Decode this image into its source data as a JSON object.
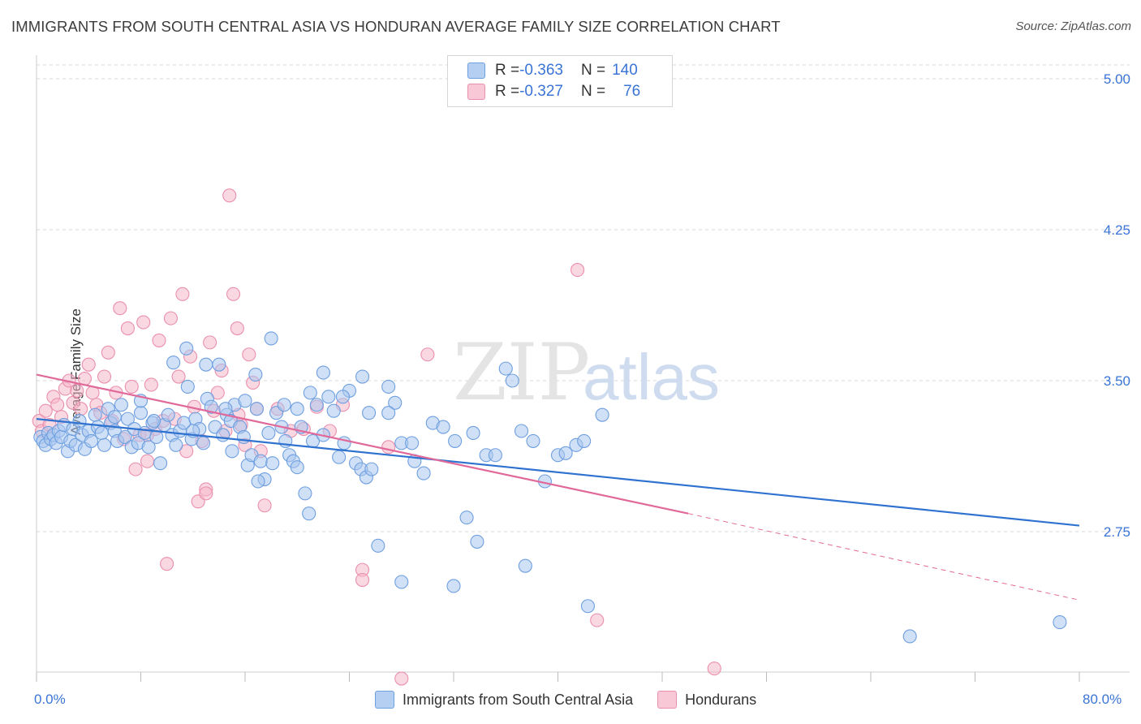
{
  "title": "IMMIGRANTS FROM SOUTH CENTRAL ASIA VS HONDURAN AVERAGE FAMILY SIZE CORRELATION CHART",
  "source": "Source: ZipAtlas.com",
  "watermark": {
    "part1": "ZIP",
    "part2": "atlas"
  },
  "legend": {
    "rows": [
      {
        "r_label": "R = ",
        "r_value": "-0.363",
        "n_label": "N = ",
        "n_value": "140"
      },
      {
        "r_label": "R = ",
        "r_value": "-0.327",
        "n_label": "N = ",
        "n_value": "76"
      }
    ]
  },
  "bottom_legend": [
    "Immigrants from South Central Asia",
    "Hondurans"
  ],
  "colors": {
    "blue_fill": "#a9c6ef",
    "blue_stroke": "#6e9fe0",
    "blue_line": "#2f72d0",
    "pink_fill": "#f5b8cb",
    "pink_stroke": "#ea8fae",
    "pink_line": "#e0699a",
    "tick_text": "#3a74d6",
    "grid": "#d8d8d8"
  },
  "chart_data": {
    "type": "scatter",
    "title": "IMMIGRANTS FROM SOUTH CENTRAL ASIA VS HONDURAN AVERAGE FAMILY SIZE CORRELATION CHART",
    "xlabel": "",
    "ylabel": "Average Family Size",
    "xlim": [
      0,
      80
    ],
    "ylim": [
      2.0,
      5.1
    ],
    "x_tick_labels": [
      "0.0%",
      "80.0%"
    ],
    "y_ticks": [
      2.75,
      3.5,
      4.25,
      5.0
    ],
    "y_tick_labels": [
      "2.75",
      "3.50",
      "4.25",
      "5.00"
    ],
    "grid": true,
    "series": [
      {
        "name": "Immigrants from South Central Asia",
        "color": "#a9c6ef",
        "trend": {
          "x0": 0,
          "y0": 3.31,
          "x1": 80,
          "y1": 2.78
        },
        "points": [
          [
            0.3,
            3.22
          ],
          [
            0.5,
            3.2
          ],
          [
            0.7,
            3.18
          ],
          [
            0.9,
            3.24
          ],
          [
            1.1,
            3.21
          ],
          [
            1.3,
            3.23
          ],
          [
            1.5,
            3.19
          ],
          [
            1.7,
            3.25
          ],
          [
            1.9,
            3.22
          ],
          [
            2.1,
            3.28
          ],
          [
            2.4,
            3.15
          ],
          [
            2.6,
            3.2
          ],
          [
            2.8,
            3.26
          ],
          [
            3.0,
            3.18
          ],
          [
            3.3,
            3.3
          ],
          [
            3.5,
            3.23
          ],
          [
            3.7,
            3.16
          ],
          [
            4.0,
            3.25
          ],
          [
            4.2,
            3.2
          ],
          [
            4.5,
            3.33
          ],
          [
            4.7,
            3.27
          ],
          [
            5.0,
            3.24
          ],
          [
            5.2,
            3.18
          ],
          [
            5.5,
            3.36
          ],
          [
            5.7,
            3.29
          ],
          [
            6.0,
            3.25
          ],
          [
            6.2,
            3.2
          ],
          [
            6.5,
            3.38
          ],
          [
            6.8,
            3.22
          ],
          [
            7.0,
            3.31
          ],
          [
            7.3,
            3.17
          ],
          [
            7.5,
            3.26
          ],
          [
            7.8,
            3.19
          ],
          [
            8.0,
            3.34
          ],
          [
            8.3,
            3.24
          ],
          [
            8.6,
            3.17
          ],
          [
            8.9,
            3.29
          ],
          [
            9.2,
            3.22
          ],
          [
            9.5,
            3.09
          ],
          [
            9.8,
            3.28
          ],
          [
            10.1,
            3.33
          ],
          [
            10.4,
            3.23
          ],
          [
            10.7,
            3.18
          ],
          [
            11.0,
            3.25
          ],
          [
            11.3,
            3.29
          ],
          [
            11.6,
            3.47
          ],
          [
            11.9,
            3.21
          ],
          [
            12.2,
            3.31
          ],
          [
            12.5,
            3.26
          ],
          [
            12.8,
            3.19
          ],
          [
            13.1,
            3.41
          ],
          [
            13.4,
            3.37
          ],
          [
            13.7,
            3.27
          ],
          [
            14.0,
            3.58
          ],
          [
            14.3,
            3.23
          ],
          [
            14.6,
            3.33
          ],
          [
            14.9,
            3.3
          ],
          [
            15.2,
            3.38
          ],
          [
            15.6,
            3.27
          ],
          [
            15.9,
            3.22
          ],
          [
            16.2,
            3.08
          ],
          [
            16.5,
            3.13
          ],
          [
            16.9,
            3.36
          ],
          [
            17.2,
            3.1
          ],
          [
            17.5,
            3.01
          ],
          [
            17.8,
            3.24
          ],
          [
            18.1,
            3.09
          ],
          [
            18.4,
            3.34
          ],
          [
            18.8,
            3.27
          ],
          [
            19.1,
            3.2
          ],
          [
            19.4,
            3.13
          ],
          [
            19.7,
            3.1
          ],
          [
            20.0,
            3.07
          ],
          [
            20.3,
            3.27
          ],
          [
            20.6,
            2.94
          ],
          [
            20.9,
            2.84
          ],
          [
            21.2,
            3.2
          ],
          [
            21.5,
            3.38
          ],
          [
            22.0,
            3.54
          ],
          [
            22.4,
            3.42
          ],
          [
            22.8,
            3.35
          ],
          [
            23.2,
            3.12
          ],
          [
            23.6,
            3.19
          ],
          [
            24.0,
            3.45
          ],
          [
            24.5,
            3.09
          ],
          [
            24.9,
            3.06
          ],
          [
            25.3,
            3.02
          ],
          [
            25.7,
            3.06
          ],
          [
            26.2,
            2.68
          ],
          [
            27.0,
            3.47
          ],
          [
            27.5,
            3.39
          ],
          [
            28.0,
            3.19
          ],
          [
            28.8,
            3.19
          ],
          [
            29.7,
            3.04
          ],
          [
            30.4,
            3.29
          ],
          [
            31.2,
            3.27
          ],
          [
            32.1,
            3.2
          ],
          [
            33.0,
            2.82
          ],
          [
            33.8,
            2.7
          ],
          [
            34.5,
            3.13
          ],
          [
            35.2,
            3.13
          ],
          [
            36.0,
            3.56
          ],
          [
            36.5,
            3.5
          ],
          [
            37.2,
            3.25
          ],
          [
            38.1,
            3.2
          ],
          [
            39.0,
            3.0
          ],
          [
            40.0,
            3.13
          ],
          [
            40.6,
            3.14
          ],
          [
            41.4,
            3.18
          ],
          [
            42.3,
            2.38
          ],
          [
            43.4,
            3.33
          ],
          [
            10.5,
            3.59
          ],
          [
            11.5,
            3.66
          ],
          [
            13.0,
            3.58
          ],
          [
            16.8,
            3.53
          ],
          [
            18.0,
            3.71
          ],
          [
            23.5,
            3.42
          ],
          [
            25.0,
            3.52
          ],
          [
            28.0,
            2.5
          ],
          [
            32.0,
            2.48
          ],
          [
            37.5,
            2.58
          ],
          [
            8.0,
            3.4
          ],
          [
            9.0,
            3.3
          ],
          [
            14.5,
            3.36
          ],
          [
            19.0,
            3.38
          ],
          [
            21.0,
            3.44
          ],
          [
            27.0,
            3.34
          ],
          [
            6.0,
            3.32
          ],
          [
            12.0,
            3.25
          ],
          [
            16.0,
            3.4
          ],
          [
            20.0,
            3.36
          ],
          [
            22.0,
            3.23
          ],
          [
            15.0,
            3.15
          ],
          [
            17.0,
            3.0
          ],
          [
            25.5,
            3.34
          ],
          [
            29.0,
            3.1
          ],
          [
            33.5,
            3.24
          ],
          [
            42.0,
            3.2
          ],
          [
            67.0,
            2.23
          ],
          [
            78.5,
            2.3
          ]
        ]
      },
      {
        "name": "Hondurans",
        "color": "#f5b8cb",
        "trend": {
          "x0": 0,
          "y0": 3.53,
          "x1": 50,
          "y1": 2.84,
          "dash_x1": 80,
          "dash_y1": 2.41
        },
        "points": [
          [
            0.2,
            3.3
          ],
          [
            0.4,
            3.25
          ],
          [
            0.7,
            3.35
          ],
          [
            1.0,
            3.28
          ],
          [
            1.3,
            3.42
          ],
          [
            1.6,
            3.38
          ],
          [
            1.9,
            3.32
          ],
          [
            2.2,
            3.46
          ],
          [
            2.5,
            3.5
          ],
          [
            2.8,
            3.39
          ],
          [
            3.1,
            3.45
          ],
          [
            3.4,
            3.36
          ],
          [
            3.7,
            3.51
          ],
          [
            4.0,
            3.58
          ],
          [
            4.3,
            3.44
          ],
          [
            4.6,
            3.38
          ],
          [
            4.9,
            3.34
          ],
          [
            5.2,
            3.52
          ],
          [
            5.5,
            3.64
          ],
          [
            5.8,
            3.3
          ],
          [
            6.1,
            3.44
          ],
          [
            6.4,
            3.86
          ],
          [
            6.7,
            3.21
          ],
          [
            7.0,
            3.76
          ],
          [
            7.3,
            3.47
          ],
          [
            7.6,
            3.06
          ],
          [
            7.9,
            3.23
          ],
          [
            8.2,
            3.79
          ],
          [
            8.5,
            3.23
          ],
          [
            8.8,
            3.48
          ],
          [
            9.1,
            3.26
          ],
          [
            9.4,
            3.7
          ],
          [
            9.7,
            3.3
          ],
          [
            10.0,
            2.59
          ],
          [
            10.3,
            3.81
          ],
          [
            10.6,
            3.31
          ],
          [
            10.9,
            3.52
          ],
          [
            11.2,
            3.93
          ],
          [
            11.5,
            3.15
          ],
          [
            11.8,
            3.62
          ],
          [
            12.1,
            3.37
          ],
          [
            12.4,
            2.9
          ],
          [
            12.7,
            3.2
          ],
          [
            13.0,
            2.96
          ],
          [
            13.3,
            3.69
          ],
          [
            13.6,
            3.35
          ],
          [
            13.9,
            3.44
          ],
          [
            14.2,
            3.55
          ],
          [
            14.5,
            3.25
          ],
          [
            14.8,
            4.42
          ],
          [
            15.1,
            3.93
          ],
          [
            15.4,
            3.76
          ],
          [
            15.7,
            3.28
          ],
          [
            16.0,
            3.18
          ],
          [
            16.3,
            3.63
          ],
          [
            16.6,
            3.49
          ],
          [
            16.9,
            3.36
          ],
          [
            17.2,
            3.15
          ],
          [
            17.5,
            2.88
          ],
          [
            18.5,
            3.36
          ],
          [
            19.5,
            3.25
          ],
          [
            20.5,
            3.26
          ],
          [
            21.5,
            3.37
          ],
          [
            22.5,
            3.25
          ],
          [
            23.5,
            3.38
          ],
          [
            25.0,
            2.56
          ],
          [
            27.0,
            3.17
          ],
          [
            30.0,
            3.63
          ],
          [
            41.5,
            4.05
          ],
          [
            43.0,
            2.31
          ],
          [
            52.0,
            2.07
          ],
          [
            13.0,
            2.94
          ],
          [
            15.5,
            3.33
          ],
          [
            25.0,
            2.51
          ],
          [
            8.5,
            3.1
          ],
          [
            28.0,
            2.02
          ]
        ]
      }
    ]
  }
}
